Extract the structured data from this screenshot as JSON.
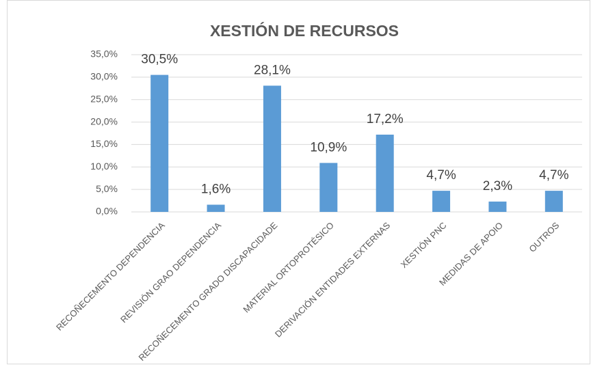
{
  "chart_data": {
    "type": "bar",
    "title": "XESTIÓN DE RECURSOS",
    "categories": [
      "RECOÑECEMENTO DEPENDENCIA",
      "REVISIÓN GRAO DEPENDENCIA",
      "RECOÑECEMENTO GRADO DISCAPACIDADE",
      "MATERIAL ORTOPROTÉSICO",
      "DERIVACIÓN ENTIDADES EXTERNAS",
      "XESTIÓN PNC",
      "MEDIDAS DE APOIO",
      "OUTROS"
    ],
    "values": [
      30.5,
      1.6,
      28.1,
      10.9,
      17.2,
      4.7,
      2.3,
      4.7
    ],
    "value_labels": [
      "30,5%",
      "1,6%",
      "28,1%",
      "10,9%",
      "17,2%",
      "4,7%",
      "2,3%",
      "4,7%"
    ],
    "color": "#5b9bd5",
    "ylim": [
      0,
      35
    ],
    "yticks": [
      {
        "value": 0,
        "label": "0,0%"
      },
      {
        "value": 5,
        "label": "5,0%"
      },
      {
        "value": 10,
        "label": "10,0%"
      },
      {
        "value": 15,
        "label": "15,0%"
      },
      {
        "value": 20,
        "label": "20,0%"
      },
      {
        "value": 25,
        "label": "25,0%"
      },
      {
        "value": 30,
        "label": "30,0%"
      },
      {
        "value": 35,
        "label": "35,0%"
      }
    ],
    "grid": true
  }
}
